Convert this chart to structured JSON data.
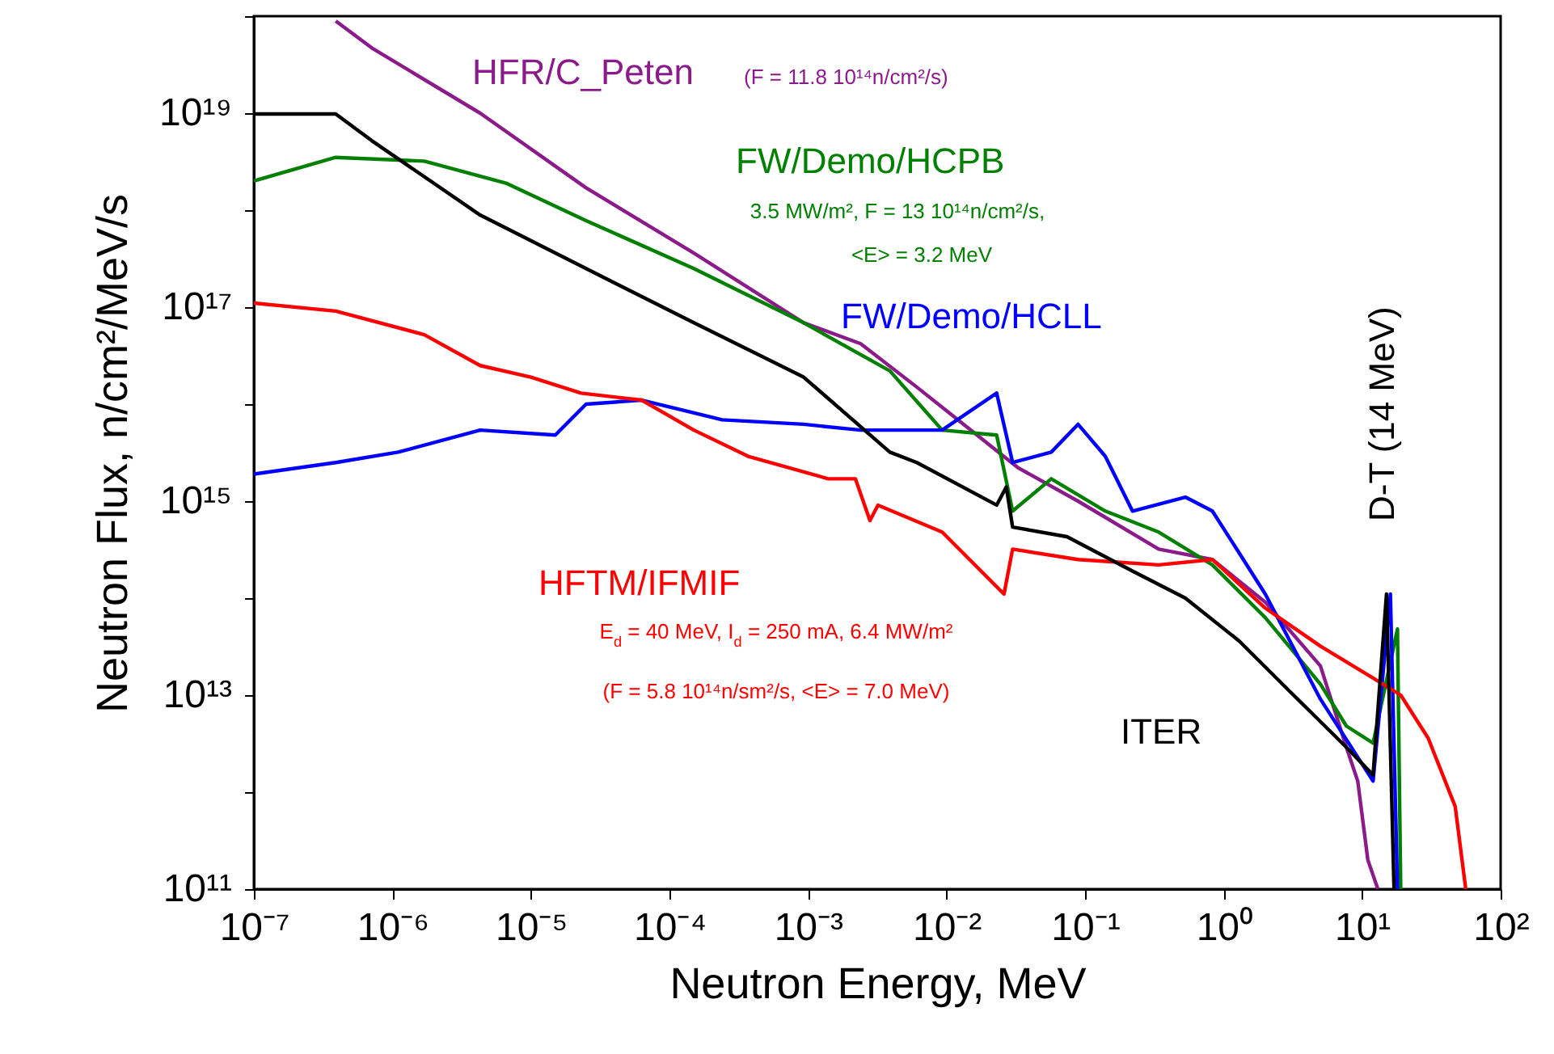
{
  "chart_data": {
    "type": "line",
    "xlabel": "Neutron Energy, MeV",
    "ylabel": "Neutron Flux,   n/cm²/MeV/s",
    "log": "xy",
    "grid": false,
    "xlim": [
      1e-07,
      100
    ],
    "ylim": [
      100000000000.0,
      1e+20
    ],
    "xticks": [
      {
        "value": 1e-07,
        "label": "10⁻⁷"
      },
      {
        "value": 1e-06,
        "label": "10⁻⁶"
      },
      {
        "value": 1e-05,
        "label": "10⁻⁵"
      },
      {
        "value": 0.0001,
        "label": "10⁻⁴"
      },
      {
        "value": 0.001,
        "label": "10⁻³"
      },
      {
        "value": 0.01,
        "label": "10⁻²"
      },
      {
        "value": 0.1,
        "label": "10⁻¹"
      },
      {
        "value": 1,
        "label": "10⁰"
      },
      {
        "value": 10,
        "label": "10¹"
      },
      {
        "value": 100,
        "label": "10²"
      }
    ],
    "yticks": [
      {
        "value": 100000000000.0,
        "label": "10¹¹"
      },
      {
        "value": 1000000000000.0,
        "label": null
      },
      {
        "value": 10000000000000.0,
        "label": "10¹³"
      },
      {
        "value": 100000000000000.0,
        "label": null
      },
      {
        "value": 1000000000000000.0,
        "label": "10¹⁵"
      },
      {
        "value": 1e+16,
        "label": null
      },
      {
        "value": 1e+17,
        "label": "10¹⁷"
      },
      {
        "value": 1e+18,
        "label": null
      },
      {
        "value": 1e+19,
        "label": "10¹⁹"
      },
      {
        "value": 1e+20,
        "label": null
      }
    ],
    "series": [
      {
        "name": "HFR/C_Peten",
        "color": "#8b1a8b",
        "x": [
          3.9e-07,
          7.1e-07,
          4.3e-06,
          2.5e-05,
          0.00015,
          0.00093,
          0.0024,
          0.0061,
          0.033,
          0.089,
          0.34,
          0.83,
          2.0,
          5.0,
          7.7,
          9.3,
          11,
          13
        ],
        "values": [
          8.9e+19,
          4.7e+19,
          1e+19,
          1.7e+18,
          3.6e+17,
          6.9e+16,
          4.2e+16,
          1.5e+16,
          2200000000000000.0,
          1000000000000000.0,
          320000000000000.0,
          250000000000000.0,
          91000000000000.0,
          20000000000000.0,
          2900000000000.0,
          1300000000000.0,
          200000000000.0,
          100000000000.0
        ]
      },
      {
        "name": "FW/Demo/HCPB",
        "color": "#008000",
        "x": [
          1e-07,
          3.9e-07,
          1.7e-06,
          6.6e-06,
          2.5e-05,
          0.00015,
          0.00093,
          0.0039,
          0.0093,
          0.023,
          0.03,
          0.057,
          0.14,
          0.34,
          0.83,
          2.0,
          5.0,
          7.7,
          12,
          18,
          19
        ],
        "values": [
          2e+18,
          3.5e+18,
          3.2e+18,
          1.9e+18,
          7.8e+17,
          2.5e+17,
          6.9e+16,
          2.2e+16,
          5400000000000000.0,
          4800000000000000.0,
          790000000000000.0,
          1700000000000000.0,
          790000000000000.0,
          480000000000000.0,
          220000000000000.0,
          63000000000000.0,
          13000000000000.0,
          4800000000000.0,
          3200000000000.0,
          48000000000000.0,
          100000000000.0
        ]
      },
      {
        "name": "FW/Demo/HCLL",
        "color": "#0000ff",
        "x": [
          1e-07,
          3.9e-07,
          1.1e-06,
          4.3e-06,
          1.5e-05,
          2.5e-05,
          6.3e-05,
          0.00024,
          0.00093,
          0.0024,
          0.0093,
          0.023,
          0.03,
          0.057,
          0.089,
          0.14,
          0.22,
          0.53,
          0.83,
          1.3,
          2.0,
          5.0,
          12,
          16,
          18
        ],
        "values": [
          1900000000000000.0,
          2500000000000000.0,
          3200000000000000.0,
          5400000000000000.0,
          4800000000000000.0,
          1e+16,
          1.1e+16,
          6900000000000000.0,
          6200000000000000.0,
          5400000000000000.0,
          5400000000000000.0,
          1.3e+16,
          2500000000000000.0,
          3200000000000000.0,
          6200000000000000.0,
          2900000000000000.0,
          790000000000000.0,
          1100000000000000.0,
          790000000000000.0,
          290000000000000.0,
          110000000000000.0,
          9100000000000.0,
          1300000000000.0,
          110000000000000.0,
          100000000000.0
        ]
      },
      {
        "name": "HFTM/IFMIF",
        "color": "#ff0000",
        "x": [
          1e-07,
          3.9e-07,
          1.7e-06,
          4.3e-06,
          1e-05,
          2.3e-05,
          6.3e-05,
          0.00015,
          0.00037,
          0.0014,
          0.0022,
          0.0028,
          0.0032,
          0.0093,
          0.026,
          0.03,
          0.089,
          0.34,
          0.83,
          2.0,
          5.0,
          12,
          19,
          30,
          47,
          56
        ],
        "values": [
          1.1e+17,
          9.1e+16,
          5.2e+16,
          2.5e+16,
          1.9e+16,
          1.3e+16,
          1.1e+16,
          5400000000000000.0,
          2900000000000000.0,
          1700000000000000.0,
          1700000000000000.0,
          630000000000000.0,
          910000000000000.0,
          480000000000000.0,
          110000000000000.0,
          320000000000000.0,
          250000000000000.0,
          220000000000000.0,
          250000000000000.0,
          79000000000000.0,
          32000000000000.0,
          15000000000000.0,
          10000000000000.0,
          3600000000000.0,
          710000000000.0,
          100000000000.0
        ]
      },
      {
        "name": "ITER",
        "color": "#000000",
        "x": [
          1e-07,
          3.9e-07,
          7.1e-07,
          4.3e-06,
          2.5e-05,
          0.00015,
          0.00093,
          0.0039,
          0.0061,
          0.023,
          0.027,
          0.03,
          0.074,
          0.22,
          0.53,
          1.3,
          3.2,
          7.7,
          12,
          15,
          17
        ],
        "values": [
          9.8e+18,
          9.8e+18,
          5.2e+18,
          8.9e+17,
          2.5e+17,
          6.9e+16,
          1.9e+16,
          3200000000000000.0,
          2500000000000000.0,
          910000000000000.0,
          1400000000000000.0,
          540000000000000.0,
          430000000000000.0,
          190000000000000.0,
          100000000000000.0,
          36000000000000.0,
          10000000000000.0,
          2900000000000.0,
          1500000000000.0,
          110000000000000.0,
          100000000000.0
        ]
      }
    ],
    "annotations": [
      "(F = 11.8 10¹⁴n/cm²/s)",
      "3.5 MW/m², F = 13 10¹⁴n/cm²/s,",
      "<E> = 3.2 MeV",
      "E$_{d}$ = 40 MeV, I$_{d}$ = 250 mA, 6.4 MW/m²",
      "(F = 5.8 10¹⁴n/sm²/s, <E> = 7.0 MeV)",
      {
        "text": "D-T (14 MeV)",
        "x": 14,
        "y": 110000000000000.0
      }
    ]
  }
}
